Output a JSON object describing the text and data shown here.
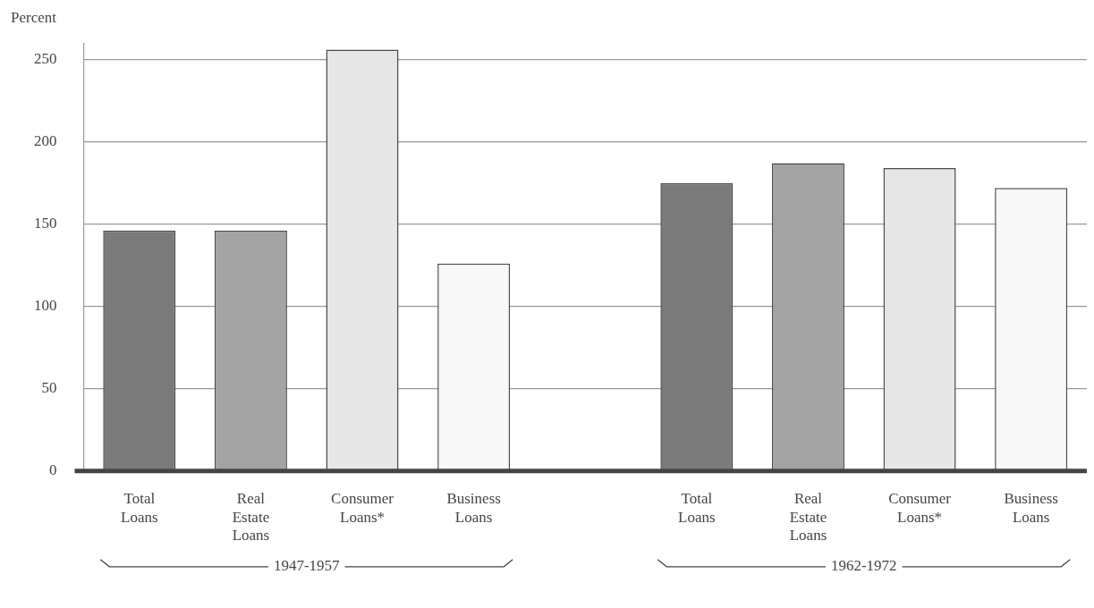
{
  "chart_data": {
    "type": "bar",
    "ylabel": "Percent",
    "categories": [
      "Total Loans",
      "Real Estate Loans",
      "Consumer Loans*",
      "Business Loans",
      null,
      "Total Loans",
      "Real Estate Loans",
      "Consumer Loans*",
      "Business Loans"
    ],
    "values": [
      146,
      146,
      256,
      126,
      null,
      175,
      187,
      184,
      172
    ],
    "colors": [
      "#7a7a7a",
      "#a3a3a3",
      "#e6e6e6",
      "#f8f8f8",
      "#ffffff",
      "#7a7a7a",
      "#a3a3a3",
      "#e6e6e6",
      "#f8f8f8"
    ],
    "ylim": [
      0,
      260
    ],
    "yticks": [
      0,
      50,
      100,
      150,
      200,
      250
    ],
    "grid": "y",
    "legend": false,
    "annotations": [
      "1947-1957",
      "1962-1972"
    ]
  }
}
